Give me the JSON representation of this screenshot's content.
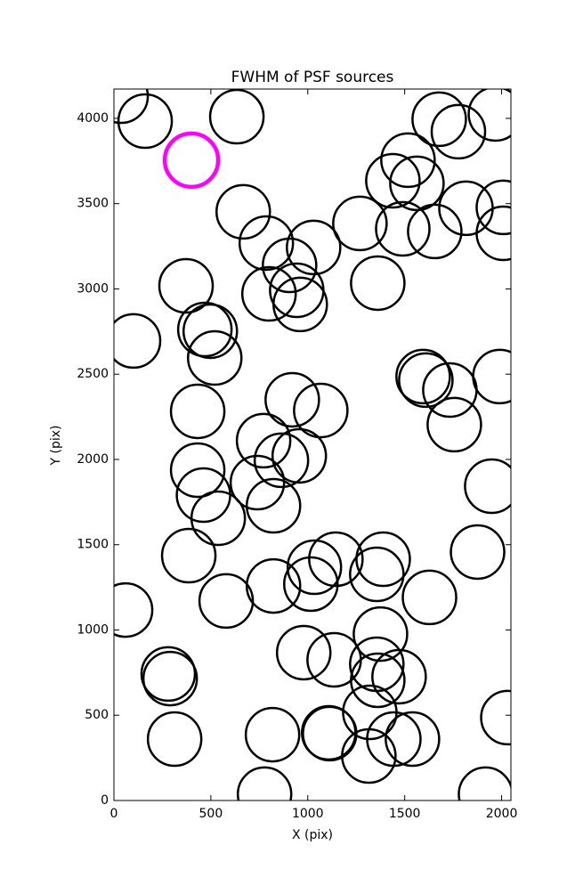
{
  "chart_data": {
    "type": "scatter",
    "title": "FWHM of PSF sources",
    "x_label": "X (pix)",
    "y_label": "Y (pix)",
    "xlim": [
      0,
      2048
    ],
    "ylim": [
      0,
      4172
    ],
    "xticks": [
      0,
      500,
      1000,
      1500,
      2000
    ],
    "yticks": [
      0,
      500,
      1000,
      1500,
      2000,
      2500,
      3000,
      3500,
      4000
    ],
    "series": [
      {
        "color": "#000000",
        "x": [
          37,
          161,
          634,
          1678,
          1777,
          1968,
          1517,
          1439,
          1563,
          1269,
          1490,
          1655,
          1816,
          2009,
          2009,
          667,
          786,
          1030,
          906,
          800,
          943,
          961,
          372,
          1361,
          101,
          469,
          497,
          520,
          1595,
          1609,
          1733,
          1756,
          1991,
          920,
          1067,
          432,
          772,
          956,
          864,
          432,
          462,
          740,
          823,
          538,
          1949,
          386,
          1876,
          1145,
          1389,
          1034,
          1356,
          1016,
          823,
          579,
          1628,
          60,
          1375,
          979,
          1136,
          1356,
          1471,
          1361,
          280,
          290,
          1320,
          2032,
          818,
          1108,
          1113,
          1444,
          1540,
          313,
          1315,
          777,
          1917
        ],
        "y": [
          4130,
          3984,
          4010,
          3995,
          3922,
          4026,
          3755,
          3634,
          3619,
          3384,
          3352,
          3337,
          3473,
          3478,
          3326,
          3452,
          3269,
          3243,
          3138,
          2971,
          2992,
          2909,
          3018,
          3034,
          2695,
          2762,
          2752,
          2595,
          2486,
          2465,
          2407,
          2204,
          2486,
          2350,
          2287,
          2282,
          2110,
          2021,
          1995,
          1937,
          1791,
          1864,
          1728,
          1655,
          1843,
          1436,
          1457,
          1415,
          1415,
          1368,
          1326,
          1269,
          1258,
          1170,
          1191,
          1117,
          976,
          867,
          825,
          799,
          726,
          705,
          742,
          715,
          517,
          486,
          386,
          397,
          392,
          360,
          360,
          360,
          261,
          37,
          37
        ]
      },
      {
        "color": "#ff00ff",
        "x": [
          400
        ],
        "y": [
          3755
        ]
      }
    ]
  }
}
